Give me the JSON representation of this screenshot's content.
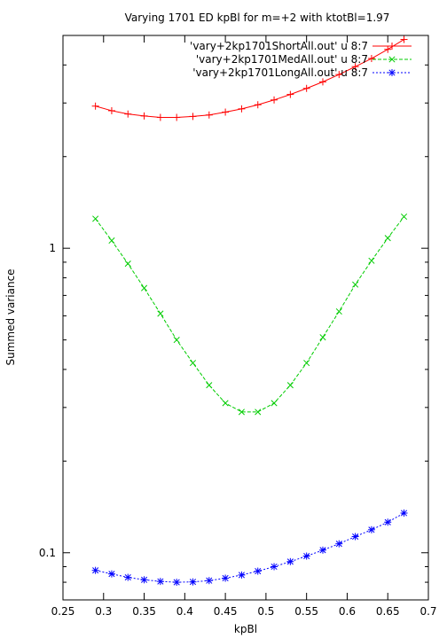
{
  "chart_data": {
    "type": "line",
    "title": "Varying 1701 ED kpBl for m=+2 with ktotBl=1.97",
    "xlabel": "kpBl",
    "ylabel": "Summed variance",
    "xlim": [
      0.25,
      0.7
    ],
    "ylim": [
      0.07,
      5.0
    ],
    "yscale": "log",
    "grid": false,
    "legend_position": "top-right",
    "x_ticks": [
      "0.25",
      "0.3",
      "0.35",
      "0.4",
      "0.45",
      "0.5",
      "0.55",
      "0.6",
      "0.65",
      "0.7"
    ],
    "y_ticks": [
      {
        "value": 0.1,
        "label": "0.1"
      },
      {
        "value": 1,
        "label": "1"
      }
    ],
    "x": [
      0.29,
      0.31,
      0.33,
      0.35,
      0.37,
      0.39,
      0.41,
      0.43,
      0.45,
      0.47,
      0.49,
      0.51,
      0.53,
      0.55,
      0.57,
      0.59,
      0.61,
      0.63,
      0.65,
      0.67
    ],
    "series": [
      {
        "name": "'vary+2kp1701ShortAll.out' u 8:7",
        "color": "#ff0000",
        "marker": "plus",
        "values": [
          2.93,
          2.83,
          2.76,
          2.72,
          2.69,
          2.69,
          2.71,
          2.74,
          2.8,
          2.87,
          2.96,
          3.07,
          3.2,
          3.35,
          3.52,
          3.72,
          3.95,
          4.2,
          4.5,
          4.85
        ]
      },
      {
        "name": "'vary+2kp1701MedAll.out' u 8:7",
        "color": "#00cc00",
        "marker": "x",
        "values": [
          1.25,
          1.06,
          0.89,
          0.74,
          0.61,
          0.5,
          0.42,
          0.355,
          0.31,
          0.29,
          0.29,
          0.31,
          0.355,
          0.42,
          0.51,
          0.62,
          0.76,
          0.91,
          1.08,
          1.27
        ]
      },
      {
        "name": "'vary+2kp1701LongAll.out' u 8:7",
        "color": "#0000ff",
        "marker": "star",
        "values": [
          0.0875,
          0.0852,
          0.083,
          0.0815,
          0.0805,
          0.08,
          0.0802,
          0.081,
          0.0825,
          0.0845,
          0.087,
          0.09,
          0.0935,
          0.0975,
          0.102,
          0.107,
          0.113,
          0.119,
          0.126,
          0.135
        ]
      }
    ]
  }
}
